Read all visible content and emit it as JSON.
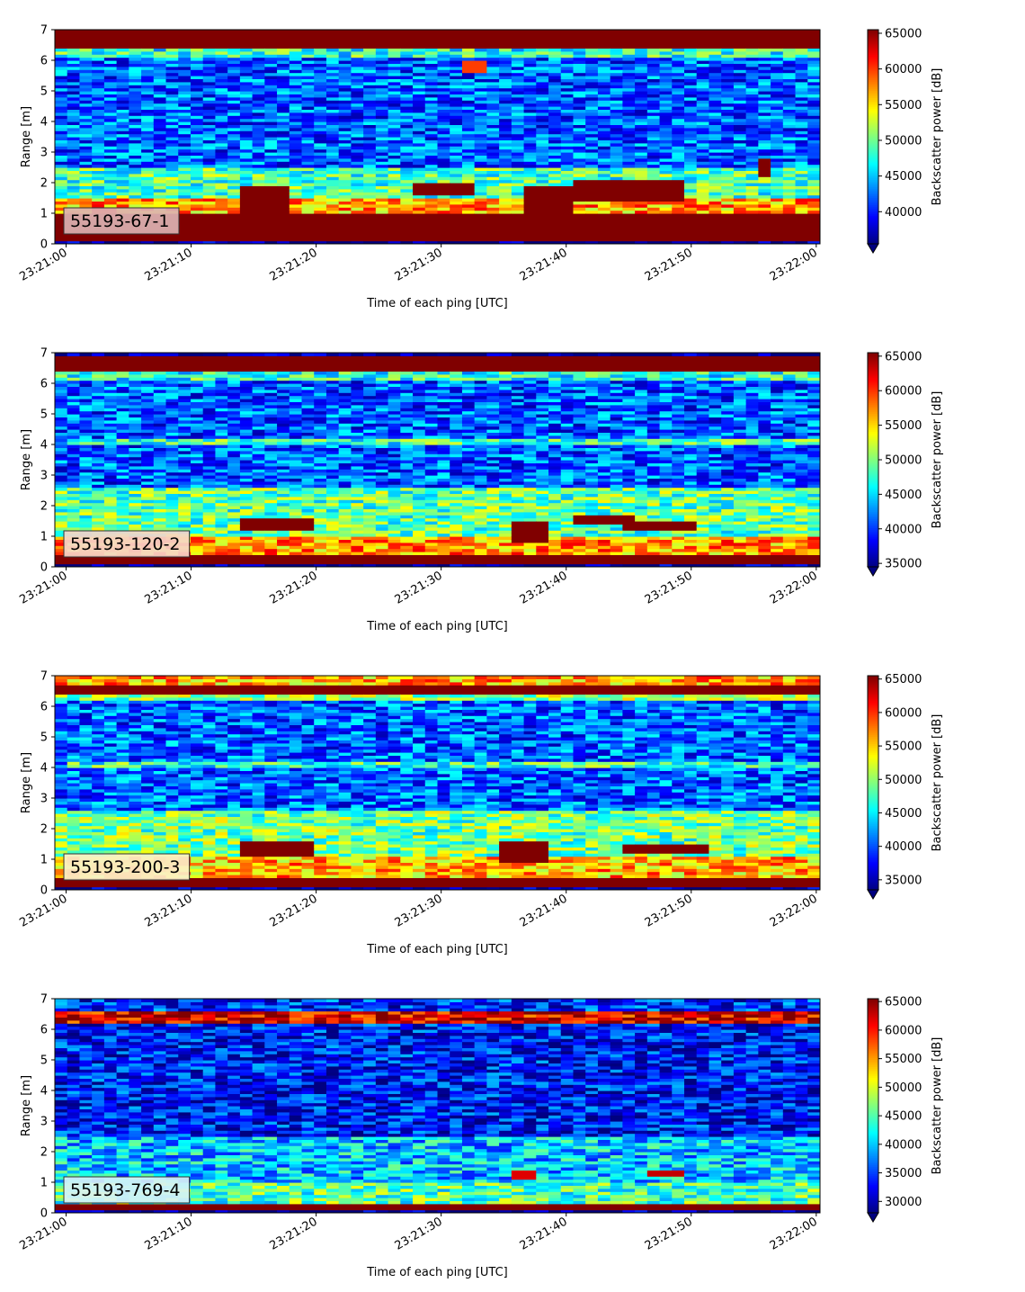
{
  "figure": {
    "panels": [
      {
        "label": "55193-67-1",
        "label_box_color": "#dcb2b2",
        "xlabel": "Time of each ping [UTC]",
        "ylabel": "Range [m]",
        "colorbar_label": "Backscatter power [dB]",
        "colorbar_ticks": [
          "40000",
          "45000",
          "50000",
          "55000",
          "60000",
          "65000"
        ]
      },
      {
        "label": "55193-120-2",
        "label_box_color": "#f6d6c8",
        "xlabel": "Time of each ping [UTC]",
        "ylabel": "Range [m]",
        "colorbar_label": "Backscatter power [dB]",
        "colorbar_ticks": [
          "35000",
          "40000",
          "45000",
          "50000",
          "55000",
          "60000",
          "65000"
        ]
      },
      {
        "label": "55193-200-3",
        "label_box_color": "#fbf1c8",
        "xlabel": "Time of each ping [UTC]",
        "ylabel": "Range [m]",
        "colorbar_label": "Backscatter power [dB]",
        "colorbar_ticks": [
          "35000",
          "40000",
          "45000",
          "50000",
          "55000",
          "60000",
          "65000"
        ]
      },
      {
        "label": "55193-769-4",
        "label_box_color": "#d6f2f6",
        "xlabel": "Time of each ping [UTC]",
        "ylabel": "Range [m]",
        "colorbar_label": "Backscatter power [dB]",
        "colorbar_ticks": [
          "30000",
          "35000",
          "40000",
          "45000",
          "50000",
          "55000",
          "60000",
          "65000"
        ]
      }
    ]
  },
  "chart_data": [
    {
      "type": "heatmap",
      "title": "55193-67-1",
      "xlabel": "Time of each ping [UTC]",
      "ylabel": "Range [m]",
      "x_start": "23:21:00",
      "x_end": "23:22:00",
      "x_ticks": [
        "23:21:00",
        "23:21:10",
        "23:21:20",
        "23:21:30",
        "23:21:40",
        "23:21:50",
        "23:22:00"
      ],
      "ylim": [
        0,
        7
      ],
      "y_ticks": [
        "0",
        "1",
        "2",
        "3",
        "4",
        "5",
        "6",
        "7"
      ],
      "colorbar": {
        "label": "Backscatter power [dB]",
        "range": [
          35500,
          65500
        ],
        "extend": "min",
        "colormap": "jet"
      },
      "bands": [
        {
          "range_m": [
            0.15,
            1.05
          ],
          "power": 65500
        },
        {
          "range_m": [
            1.05,
            1.5
          ],
          "power": 57000
        },
        {
          "range_m": [
            1.5,
            2.5
          ],
          "power": 49000
        },
        {
          "range_m": [
            2.5,
            6.1
          ],
          "power": 42000
        },
        {
          "range_m": [
            6.1,
            6.45
          ],
          "power": 48000
        },
        {
          "range_m": [
            6.45,
            7.0
          ],
          "power": 65500
        }
      ],
      "features": [
        {
          "time": [
            "23:21:14",
            "23:21:18"
          ],
          "range_m": [
            0.9,
            1.9
          ],
          "power": 65500
        },
        {
          "time": [
            "23:21:28",
            "23:21:33"
          ],
          "range_m": [
            1.6,
            2.0
          ],
          "power": 65500
        },
        {
          "time": [
            "23:21:37",
            "23:21:41"
          ],
          "range_m": [
            1.0,
            1.9
          ],
          "power": 65500
        },
        {
          "time": [
            "23:21:41",
            "23:21:49"
          ],
          "range_m": [
            1.4,
            2.1
          ],
          "power": 65500
        },
        {
          "time": [
            "23:21:32",
            "23:21:34"
          ],
          "range_m": [
            5.6,
            6.0
          ],
          "power": 60000
        },
        {
          "time": [
            "23:21:55",
            "23:21:56"
          ],
          "range_m": [
            2.2,
            2.8
          ],
          "power": 65500
        }
      ]
    },
    {
      "type": "heatmap",
      "title": "55193-120-2",
      "xlabel": "Time of each ping [UTC]",
      "ylabel": "Range [m]",
      "x_start": "23:21:00",
      "x_end": "23:22:00",
      "x_ticks": [
        "23:21:00",
        "23:21:10",
        "23:21:20",
        "23:21:30",
        "23:21:40",
        "23:21:50",
        "23:22:00"
      ],
      "ylim": [
        0,
        7
      ],
      "y_ticks": [
        "0",
        "1",
        "2",
        "3",
        "4",
        "5",
        "6",
        "7"
      ],
      "colorbar": {
        "label": "Backscatter power [dB]",
        "range": [
          34500,
          65500
        ],
        "extend": "min",
        "colormap": "jet"
      },
      "bands": [
        {
          "range_m": [
            0.1,
            0.45
          ],
          "power": 65500
        },
        {
          "range_m": [
            0.45,
            1.0
          ],
          "power": 57000
        },
        {
          "range_m": [
            1.0,
            2.6
          ],
          "power": 49000
        },
        {
          "range_m": [
            2.6,
            6.15
          ],
          "power": 41000
        },
        {
          "range_m": [
            6.15,
            6.4
          ],
          "power": 47000
        },
        {
          "range_m": [
            6.4,
            6.95
          ],
          "power": 65500
        }
      ],
      "features": [
        {
          "time": [
            "23:21:14",
            "23:21:20"
          ],
          "range_m": [
            1.2,
            1.6
          ],
          "power": 65500
        },
        {
          "time": [
            "23:21:36",
            "23:21:39"
          ],
          "range_m": [
            0.8,
            1.5
          ],
          "power": 65500
        },
        {
          "time": [
            "23:21:41",
            "23:21:45"
          ],
          "range_m": [
            1.4,
            1.7
          ],
          "power": 65500
        },
        {
          "time": [
            "23:21:45",
            "23:21:50"
          ],
          "range_m": [
            1.2,
            1.5
          ],
          "power": 65500
        },
        {
          "time": [
            "23:21:00",
            "23:22:00"
          ],
          "range_m": [
            4.05,
            4.15
          ],
          "power": 48000
        }
      ]
    },
    {
      "type": "heatmap",
      "title": "55193-200-3",
      "xlabel": "Time of each ping [UTC]",
      "ylabel": "Range [m]",
      "x_start": "23:21:00",
      "x_end": "23:22:00",
      "x_ticks": [
        "23:21:00",
        "23:21:10",
        "23:21:20",
        "23:21:30",
        "23:21:40",
        "23:21:50",
        "23:22:00"
      ],
      "ylim": [
        0,
        7
      ],
      "y_ticks": [
        "0",
        "1",
        "2",
        "3",
        "4",
        "5",
        "6",
        "7"
      ],
      "colorbar": {
        "label": "Backscatter power [dB]",
        "range": [
          33500,
          65500
        ],
        "extend": "min",
        "colormap": "jet"
      },
      "bands": [
        {
          "range_m": [
            0.1,
            0.45
          ],
          "power": 65500
        },
        {
          "range_m": [
            0.45,
            1.1
          ],
          "power": 56000
        },
        {
          "range_m": [
            1.1,
            2.6
          ],
          "power": 49000
        },
        {
          "range_m": [
            2.6,
            6.2
          ],
          "power": 40500
        },
        {
          "range_m": [
            6.2,
            6.4
          ],
          "power": 50000
        },
        {
          "range_m": [
            6.4,
            6.7
          ],
          "power": 65500
        },
        {
          "range_m": [
            6.7,
            7.0
          ],
          "power": 56000
        }
      ],
      "features": [
        {
          "time": [
            "23:21:14",
            "23:21:20"
          ],
          "range_m": [
            1.1,
            1.55
          ],
          "power": 65500
        },
        {
          "time": [
            "23:21:35",
            "23:21:39"
          ],
          "range_m": [
            0.9,
            1.6
          ],
          "power": 65500
        },
        {
          "time": [
            "23:21:45",
            "23:21:51"
          ],
          "range_m": [
            1.2,
            1.5
          ],
          "power": 65500
        },
        {
          "time": [
            "23:21:00",
            "23:22:00"
          ],
          "range_m": [
            4.05,
            4.15
          ],
          "power": 47000
        }
      ]
    },
    {
      "type": "heatmap",
      "title": "55193-769-4",
      "xlabel": "Time of each ping [UTC]",
      "ylabel": "Range [m]",
      "x_start": "23:21:00",
      "x_end": "23:22:00",
      "x_ticks": [
        "23:21:00",
        "23:21:10",
        "23:21:20",
        "23:21:30",
        "23:21:40",
        "23:21:50",
        "23:22:00"
      ],
      "ylim": [
        0,
        7
      ],
      "y_ticks": [
        "0",
        "1",
        "2",
        "3",
        "4",
        "5",
        "6",
        "7"
      ],
      "colorbar": {
        "label": "Backscatter power [dB]",
        "range": [
          28000,
          65500
        ],
        "extend": "min",
        "colormap": "jet"
      },
      "bands": [
        {
          "range_m": [
            0.1,
            0.35
          ],
          "power": 65500
        },
        {
          "range_m": [
            0.35,
            1.0
          ],
          "power": 45000
        },
        {
          "range_m": [
            1.0,
            2.5
          ],
          "power": 40000
        },
        {
          "range_m": [
            2.5,
            6.2
          ],
          "power": 33000
        },
        {
          "range_m": [
            6.2,
            6.6
          ],
          "power": 62000
        },
        {
          "range_m": [
            6.6,
            7.0
          ],
          "power": 34000
        }
      ],
      "features": [
        {
          "time": [
            "23:21:36",
            "23:21:38"
          ],
          "range_m": [
            1.1,
            1.4
          ],
          "power": 62000
        },
        {
          "time": [
            "23:21:46",
            "23:21:49"
          ],
          "range_m": [
            1.2,
            1.35
          ],
          "power": 63000
        }
      ]
    }
  ]
}
